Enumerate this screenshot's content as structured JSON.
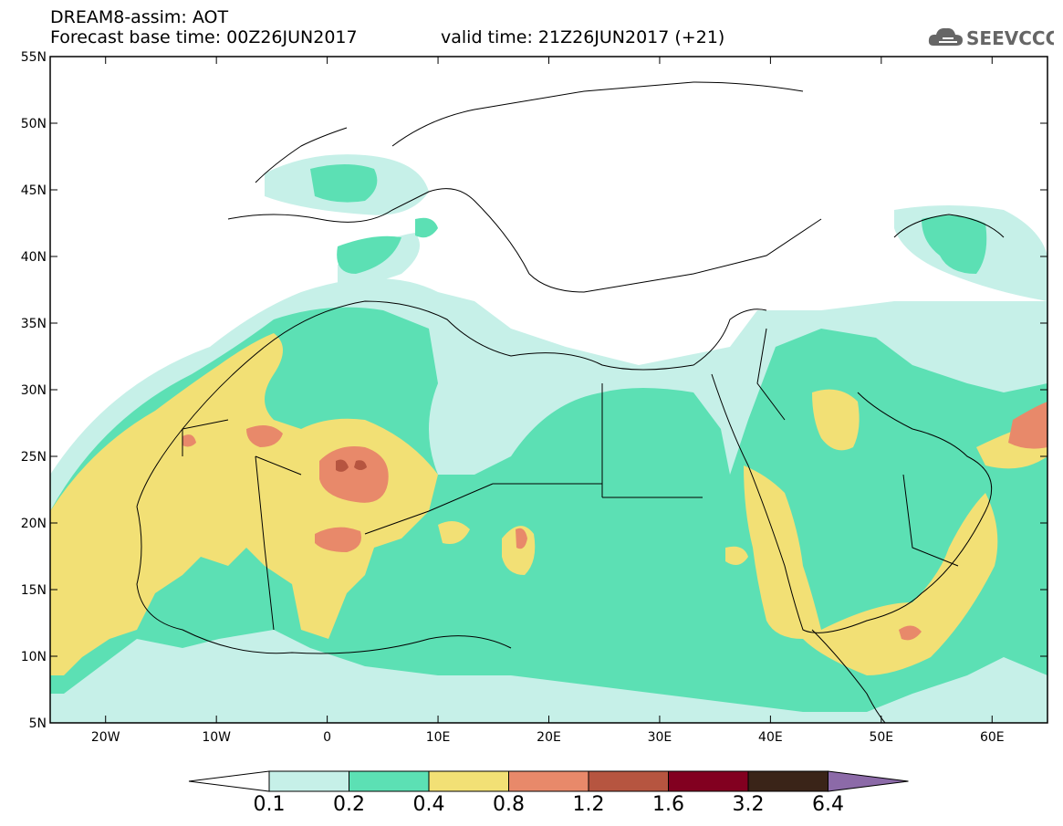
{
  "header": {
    "line1": "DREAM8-assim: AOT",
    "line2": "Forecast base time: 00Z26JUN2017",
    "line3": "valid time: 21Z26JUN2017 (+21)"
  },
  "logo": {
    "text": "SEEVCCC",
    "icon": "cloud-icon"
  },
  "axes": {
    "lat_labels": [
      "55N",
      "50N",
      "45N",
      "40N",
      "35N",
      "30N",
      "25N",
      "20N",
      "15N",
      "10N",
      "5N"
    ],
    "lon_labels": [
      "20W",
      "10W",
      "0",
      "10E",
      "20E",
      "30E",
      "40E",
      "50E",
      "60E"
    ],
    "lat_range": [
      5,
      55
    ],
    "lon_range": [
      -25,
      65
    ]
  },
  "colorbar": {
    "labels": [
      "0.1",
      "0.2",
      "0.4",
      "0.8",
      "1.2",
      "1.6",
      "3.2",
      "6.4"
    ],
    "colors": [
      "#c6f0e8",
      "#5ce0b4",
      "#f2e075",
      "#e8896a",
      "#b65540",
      "#820020",
      "#3a2418",
      "#8c6aa8"
    ],
    "under_color": "#ffffff"
  },
  "field_colors": {
    "lev1": "#c6f0e8",
    "lev2": "#5ce0b4",
    "lev3": "#f2e075",
    "lev4": "#e8896a",
    "lev5": "#b65540"
  }
}
